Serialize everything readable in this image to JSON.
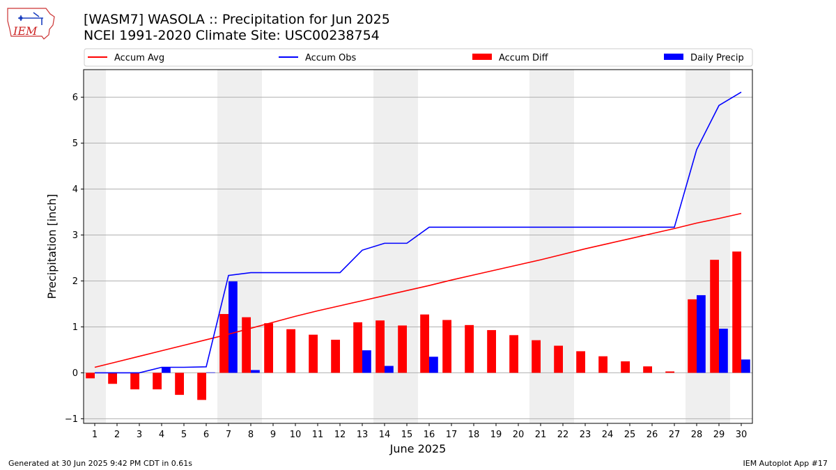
{
  "header": {
    "title_line1": "[WASM7] WASOLA :: Precipitation for Jun 2025",
    "title_line2": "NCEI 1991-2020 Climate Site: USC00238754",
    "logo_text": "IEM"
  },
  "footer": {
    "left": "Generated at 30 Jun 2025 9:42 PM CDT in 0.61s",
    "right": "IEM Autoplot App #17"
  },
  "colors": {
    "accum_avg": "#ff0000",
    "accum_obs": "#0000ff",
    "accum_diff": "#ff0000",
    "daily_precip": "#0000ff",
    "weekend_shade": "#efefef",
    "grid": "#b0b0b0"
  },
  "chart_data": {
    "type": "bar",
    "xlabel": "June 2025",
    "ylabel": "Precipitation [inch]",
    "ylim": [
      -1.1,
      6.6
    ],
    "yticks": [
      -1,
      0,
      1,
      2,
      3,
      4,
      5,
      6
    ],
    "grid": "horizontal",
    "legend_placement": "top",
    "categories": [
      "1",
      "2",
      "3",
      "4",
      "5",
      "6",
      "7",
      "8",
      "9",
      "10",
      "11",
      "12",
      "13",
      "14",
      "15",
      "16",
      "17",
      "18",
      "19",
      "20",
      "21",
      "22",
      "23",
      "24",
      "25",
      "26",
      "27",
      "28",
      "29",
      "30"
    ],
    "shaded_days": [
      1,
      7,
      8,
      14,
      15,
      21,
      22,
      28,
      29
    ],
    "series": [
      {
        "name": "Accum Avg",
        "kind": "line",
        "values": [
          0.12,
          0.24,
          0.36,
          0.48,
          0.6,
          0.72,
          0.84,
          0.97,
          1.1,
          1.23,
          1.35,
          1.46,
          1.57,
          1.68,
          1.79,
          1.9,
          2.02,
          2.13,
          2.24,
          2.35,
          2.46,
          2.58,
          2.7,
          2.81,
          2.92,
          3.03,
          3.14,
          3.26,
          3.36,
          3.47
        ]
      },
      {
        "name": "Accum Obs",
        "kind": "line",
        "values": [
          0.0,
          0.0,
          0.0,
          0.12,
          0.12,
          0.13,
          2.12,
          2.18,
          2.18,
          2.18,
          2.18,
          2.18,
          2.67,
          2.82,
          2.82,
          3.17,
          3.17,
          3.17,
          3.17,
          3.17,
          3.17,
          3.17,
          3.17,
          3.17,
          3.17,
          3.17,
          3.17,
          4.86,
          5.82,
          6.11
        ]
      },
      {
        "name": "Accum Diff",
        "kind": "bar",
        "values": [
          -0.12,
          -0.24,
          -0.36,
          -0.36,
          -0.48,
          -0.59,
          1.28,
          1.21,
          1.08,
          0.95,
          0.83,
          0.72,
          1.1,
          1.14,
          1.03,
          1.27,
          1.15,
          1.04,
          0.93,
          0.82,
          0.71,
          0.59,
          0.47,
          0.36,
          0.25,
          0.14,
          0.03,
          1.6,
          2.46,
          2.64
        ]
      },
      {
        "name": "Daily Precip",
        "kind": "bar",
        "values": [
          0.0,
          0.0,
          0.0,
          0.12,
          0.0,
          0.01,
          1.99,
          0.06,
          0.0,
          0.0,
          0.0,
          0.0,
          0.49,
          0.15,
          0.0,
          0.35,
          0.0,
          0.0,
          0.0,
          0.0,
          0.0,
          0.0,
          0.0,
          0.0,
          0.0,
          0.0,
          0.0,
          1.69,
          0.96,
          0.29
        ]
      }
    ]
  }
}
